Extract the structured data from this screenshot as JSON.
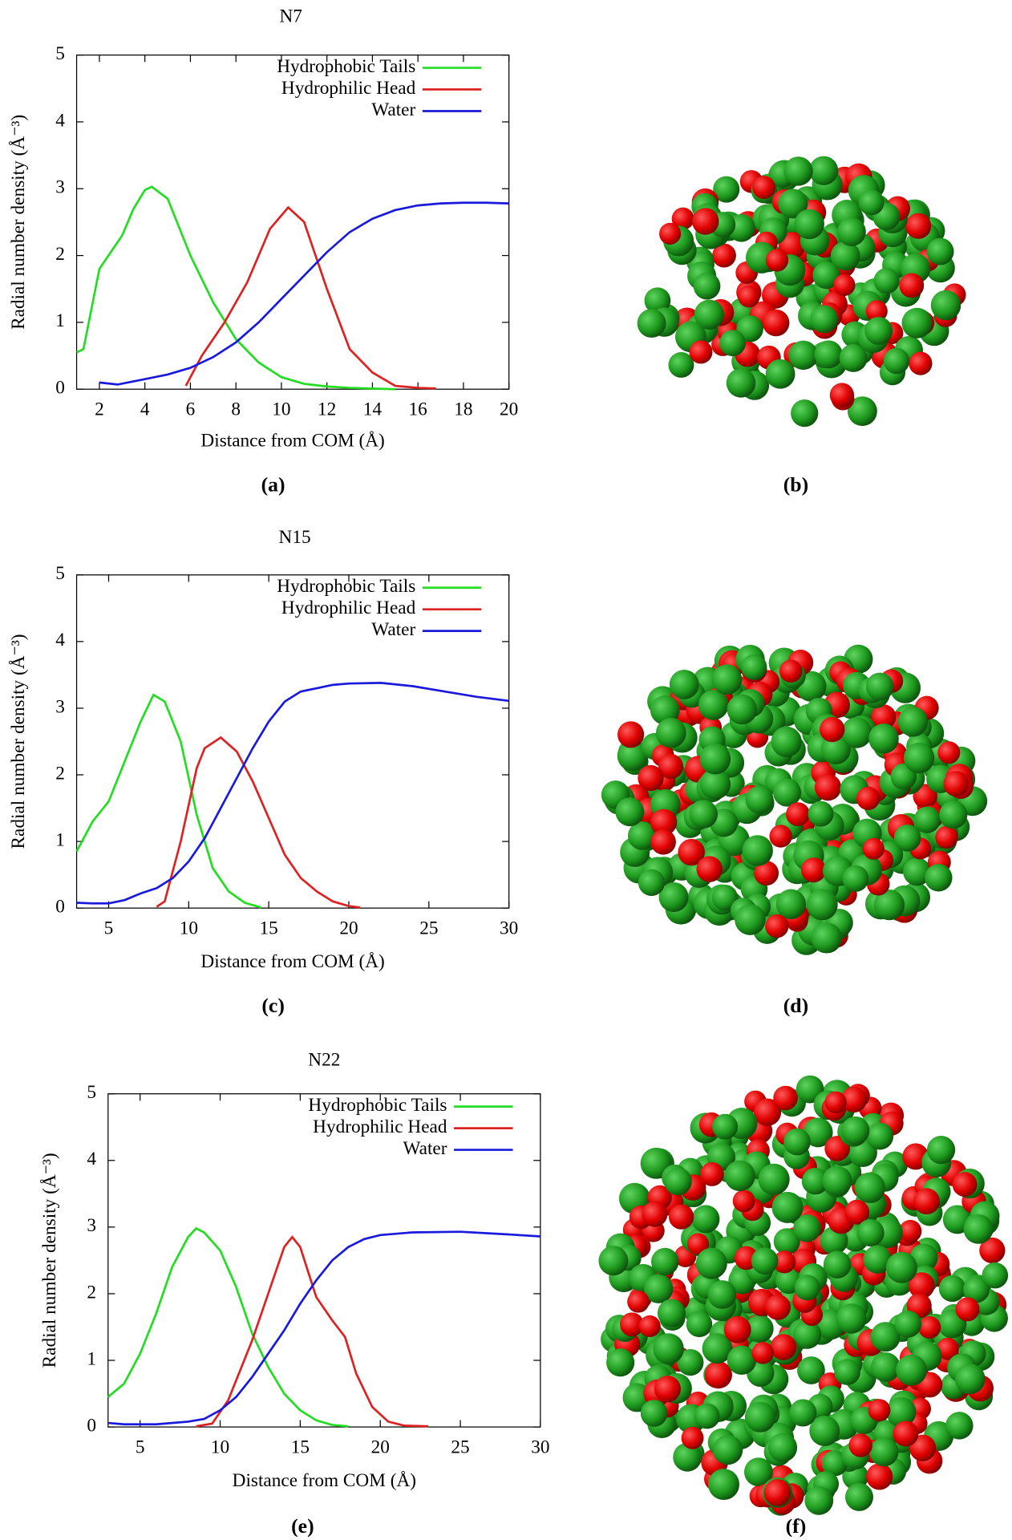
{
  "chart_data": [
    {
      "type": "line",
      "title": "N7",
      "xlabel": "Distance from COM (Å)",
      "ylabel": "Radial number density (Å⁻³)",
      "caption": "(a)",
      "image_caption": "(b)",
      "xlim": [
        1,
        20
      ],
      "xticks": [
        2,
        4,
        6,
        8,
        10,
        12,
        14,
        16,
        18,
        20
      ],
      "ylim": [
        0,
        5
      ],
      "yticks": [
        0,
        1,
        2,
        3,
        4,
        5
      ],
      "legend": "upper right",
      "series": [
        {
          "name": "Hydrophobic Tails",
          "color": "#22dd22",
          "x": [
            1,
            1.3,
            2,
            3,
            3.5,
            4,
            4.3,
            5,
            6,
            7,
            8,
            9,
            10,
            11,
            12,
            13,
            15
          ],
          "values": [
            0.55,
            0.6,
            1.8,
            2.3,
            2.7,
            2.98,
            3.03,
            2.85,
            2.0,
            1.3,
            0.75,
            0.4,
            0.18,
            0.08,
            0.04,
            0.02,
            0.0
          ]
        },
        {
          "name": "Hydrophilic Head",
          "color": "#dd2222",
          "x": [
            5.8,
            6.5,
            7.5,
            8.5,
            9.5,
            10.3,
            11,
            12,
            13,
            14,
            15,
            16,
            16.8
          ],
          "values": [
            0.05,
            0.5,
            1.0,
            1.6,
            2.4,
            2.72,
            2.5,
            1.5,
            0.6,
            0.25,
            0.05,
            0.02,
            0.01
          ]
        },
        {
          "name": "Water",
          "color": "#1a1add",
          "x": [
            2,
            2.8,
            4,
            5,
            6,
            7,
            8,
            9,
            10,
            11,
            12,
            13,
            14,
            15,
            16,
            17,
            18,
            19,
            20
          ],
          "values": [
            0.1,
            0.07,
            0.15,
            0.22,
            0.32,
            0.48,
            0.7,
            1.0,
            1.35,
            1.7,
            2.05,
            2.35,
            2.55,
            2.68,
            2.75,
            2.78,
            2.79,
            2.79,
            2.78
          ]
        }
      ]
    },
    {
      "type": "line",
      "title": "N15",
      "xlabel": "Distance from COM (Å)",
      "ylabel": "Radial number density (Å⁻³)",
      "caption": "(c)",
      "image_caption": "(d)",
      "xlim": [
        3,
        30
      ],
      "xticks": [
        5,
        10,
        15,
        20,
        25,
        30
      ],
      "ylim": [
        0,
        5
      ],
      "yticks": [
        0,
        1,
        2,
        3,
        4,
        5
      ],
      "legend": "upper right",
      "series": [
        {
          "name": "Hydrophobic Tails",
          "color": "#22dd22",
          "x": [
            3,
            4,
            5,
            6,
            7,
            7.8,
            8.5,
            9.5,
            10.5,
            11.5,
            12.5,
            13.5,
            14.5
          ],
          "values": [
            0.85,
            1.3,
            1.6,
            2.2,
            2.8,
            3.2,
            3.1,
            2.5,
            1.4,
            0.6,
            0.25,
            0.08,
            0.01
          ]
        },
        {
          "name": "Hydrophilic Head",
          "color": "#dd2222",
          "x": [
            8,
            8.5,
            9.5,
            10.5,
            11,
            12,
            13,
            14,
            15,
            16,
            17,
            18,
            19,
            20,
            20.7
          ],
          "values": [
            0.02,
            0.1,
            1.0,
            2.1,
            2.4,
            2.56,
            2.35,
            1.9,
            1.35,
            0.8,
            0.45,
            0.25,
            0.1,
            0.03,
            0.01
          ]
        },
        {
          "name": "Water",
          "color": "#1a1add",
          "x": [
            3,
            4,
            5,
            6,
            7,
            8,
            9,
            10,
            11,
            12,
            13,
            14,
            15,
            16,
            17,
            18,
            19,
            20,
            22,
            24,
            26,
            28,
            30
          ],
          "values": [
            0.08,
            0.07,
            0.07,
            0.12,
            0.22,
            0.3,
            0.45,
            0.7,
            1.05,
            1.5,
            1.95,
            2.4,
            2.8,
            3.1,
            3.25,
            3.3,
            3.35,
            3.37,
            3.38,
            3.33,
            3.25,
            3.17,
            3.11
          ]
        }
      ]
    },
    {
      "type": "line",
      "title": "N22",
      "xlabel": "Distance from COM (Å)",
      "ylabel": "Radial number density (Å⁻³)",
      "caption": "(e)",
      "image_caption": "(f)",
      "xlim": [
        3,
        30
      ],
      "xticks": [
        5,
        10,
        15,
        20,
        25,
        30
      ],
      "ylim": [
        0,
        5
      ],
      "yticks": [
        0,
        1,
        2,
        3,
        4,
        5
      ],
      "legend": "upper right",
      "series": [
        {
          "name": "Hydrophobic Tails",
          "color": "#22dd22",
          "x": [
            3,
            4,
            5,
            6,
            7,
            8,
            8.5,
            9,
            10,
            11,
            12,
            13,
            14,
            15,
            16,
            17,
            18
          ],
          "values": [
            0.45,
            0.65,
            1.1,
            1.7,
            2.4,
            2.85,
            2.98,
            2.92,
            2.65,
            2.1,
            1.4,
            0.9,
            0.5,
            0.25,
            0.1,
            0.03,
            0.01
          ]
        },
        {
          "name": "Hydrophilic Head",
          "color": "#dd2222",
          "x": [
            8.5,
            9.5,
            10.5,
            11.5,
            12,
            13,
            14,
            14.5,
            15,
            16,
            17,
            17.8,
            18.5,
            19.5,
            20.5,
            21.5,
            23
          ],
          "values": [
            0.01,
            0.05,
            0.4,
            1.0,
            1.3,
            2.0,
            2.7,
            2.85,
            2.7,
            1.95,
            1.6,
            1.35,
            0.8,
            0.3,
            0.08,
            0.02,
            0.01
          ]
        },
        {
          "name": "Water",
          "color": "#1a1add",
          "x": [
            3,
            4,
            6,
            8,
            9,
            10,
            11,
            12,
            13,
            14,
            15,
            16,
            17,
            18,
            19,
            20,
            22,
            25,
            28,
            30
          ],
          "values": [
            0.06,
            0.04,
            0.04,
            0.08,
            0.12,
            0.25,
            0.45,
            0.75,
            1.1,
            1.45,
            1.85,
            2.2,
            2.5,
            2.7,
            2.82,
            2.88,
            2.92,
            2.93,
            2.89,
            2.86
          ]
        }
      ]
    }
  ]
}
